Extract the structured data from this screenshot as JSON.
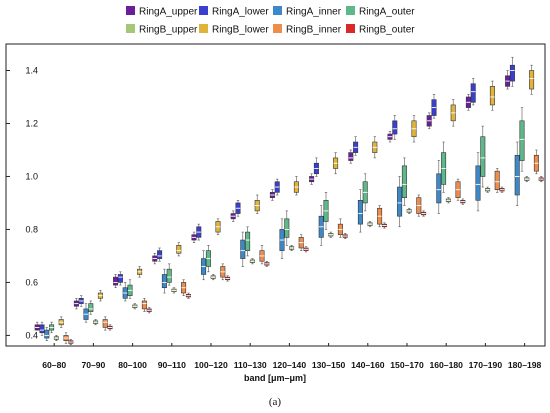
{
  "caption": "(a)",
  "chart_data": {
    "type": "box",
    "xlabel": "band [μm–μm]",
    "ylabel": "",
    "ylim": [
      0.36,
      1.5
    ],
    "yticks": [
      0.4,
      0.6,
      0.8,
      1.0,
      1.2,
      1.4
    ],
    "ytick_labels": [
      "0.4",
      "0.6",
      "0.8",
      "1.0",
      "1.2",
      "1.4"
    ],
    "grid": false,
    "legend_position": "top",
    "categories": [
      "60–80",
      "70–90",
      "80–100",
      "90–110",
      "100–120",
      "110–130",
      "120–140",
      "130–150",
      "140–160",
      "150–170",
      "160–180",
      "170–190",
      "180–198"
    ],
    "series": [
      {
        "name": "RingA_upper",
        "color": "#6a1f9a",
        "median": [
          0.43,
          0.52,
          0.6,
          0.69,
          0.77,
          0.85,
          0.93,
          0.99,
          1.07,
          1.15,
          1.21,
          1.28,
          1.36
        ],
        "q1": [
          0.42,
          0.51,
          0.59,
          0.68,
          0.76,
          0.84,
          0.92,
          0.98,
          1.06,
          1.14,
          1.19,
          1.26,
          1.34
        ],
        "q3": [
          0.44,
          0.53,
          0.62,
          0.7,
          0.78,
          0.86,
          0.94,
          1.0,
          1.09,
          1.16,
          1.23,
          1.3,
          1.38
        ],
        "whisker_low": [
          0.42,
          0.5,
          0.58,
          0.67,
          0.75,
          0.83,
          0.91,
          0.97,
          1.05,
          1.13,
          1.18,
          1.25,
          1.33
        ],
        "whisker_high": [
          0.45,
          0.54,
          0.63,
          0.71,
          0.79,
          0.87,
          0.95,
          1.01,
          1.1,
          1.17,
          1.24,
          1.31,
          1.4
        ]
      },
      {
        "name": "RingA_lower",
        "color": "#3a3fcf",
        "median": [
          0.42,
          0.53,
          0.62,
          0.7,
          0.79,
          0.88,
          0.96,
          1.03,
          1.11,
          1.18,
          1.26,
          1.32,
          1.4
        ],
        "q1": [
          0.41,
          0.52,
          0.6,
          0.69,
          0.77,
          0.86,
          0.94,
          1.01,
          1.09,
          1.16,
          1.23,
          1.28,
          1.36
        ],
        "q3": [
          0.44,
          0.54,
          0.63,
          0.72,
          0.81,
          0.9,
          0.98,
          1.05,
          1.13,
          1.21,
          1.29,
          1.35,
          1.42
        ],
        "whisker_low": [
          0.4,
          0.51,
          0.59,
          0.68,
          0.76,
          0.85,
          0.93,
          1.0,
          1.08,
          1.14,
          1.22,
          1.27,
          1.34
        ],
        "whisker_high": [
          0.45,
          0.55,
          0.64,
          0.73,
          0.82,
          0.91,
          0.99,
          1.07,
          1.15,
          1.23,
          1.31,
          1.37,
          1.45
        ]
      },
      {
        "name": "RingA_inner",
        "color": "#3d88c9",
        "median": [
          0.4,
          0.48,
          0.56,
          0.6,
          0.66,
          0.72,
          0.76,
          0.81,
          0.86,
          0.9,
          0.95,
          0.97,
          1.0
        ],
        "q1": [
          0.39,
          0.46,
          0.54,
          0.58,
          0.63,
          0.69,
          0.72,
          0.77,
          0.82,
          0.85,
          0.9,
          0.91,
          0.93
        ],
        "q3": [
          0.42,
          0.5,
          0.58,
          0.63,
          0.69,
          0.76,
          0.8,
          0.85,
          0.91,
          0.96,
          1.01,
          1.04,
          1.08
        ],
        "whisker_low": [
          0.38,
          0.45,
          0.53,
          0.56,
          0.61,
          0.66,
          0.69,
          0.74,
          0.79,
          0.81,
          0.86,
          0.87,
          0.89
        ],
        "whisker_high": [
          0.43,
          0.52,
          0.6,
          0.65,
          0.72,
          0.79,
          0.84,
          0.89,
          0.95,
          1.0,
          1.06,
          1.09,
          1.13
        ]
      },
      {
        "name": "RingA_outer",
        "color": "#5fb889",
        "median": [
          0.43,
          0.5,
          0.57,
          0.62,
          0.69,
          0.76,
          0.8,
          0.87,
          0.94,
          0.97,
          1.03,
          1.07,
          1.14
        ],
        "q1": [
          0.42,
          0.49,
          0.55,
          0.6,
          0.66,
          0.72,
          0.77,
          0.83,
          0.9,
          0.92,
          0.97,
          1.0,
          1.06
        ],
        "q3": [
          0.44,
          0.52,
          0.59,
          0.65,
          0.72,
          0.79,
          0.84,
          0.91,
          0.98,
          1.04,
          1.09,
          1.15,
          1.21
        ],
        "whisker_low": [
          0.41,
          0.48,
          0.54,
          0.59,
          0.64,
          0.7,
          0.74,
          0.8,
          0.87,
          0.89,
          0.94,
          0.96,
          1.02
        ],
        "whisker_high": [
          0.45,
          0.53,
          0.61,
          0.67,
          0.74,
          0.81,
          0.87,
          0.94,
          1.01,
          1.07,
          1.13,
          1.19,
          1.26
        ]
      },
      {
        "name": "RingB_upper",
        "color": "#a3c87a",
        "median": [
          0.39,
          0.45,
          0.51,
          0.57,
          0.62,
          0.68,
          0.73,
          0.78,
          0.82,
          0.87,
          0.91,
          0.95,
          0.99
        ],
        "q1": [
          0.385,
          0.445,
          0.505,
          0.565,
          0.615,
          0.675,
          0.725,
          0.775,
          0.815,
          0.865,
          0.905,
          0.945,
          0.985
        ],
        "q3": [
          0.395,
          0.455,
          0.515,
          0.575,
          0.625,
          0.685,
          0.735,
          0.785,
          0.825,
          0.875,
          0.915,
          0.955,
          0.995
        ],
        "whisker_low": [
          0.38,
          0.44,
          0.5,
          0.56,
          0.61,
          0.67,
          0.72,
          0.77,
          0.81,
          0.86,
          0.9,
          0.94,
          0.98
        ],
        "whisker_high": [
          0.4,
          0.46,
          0.52,
          0.58,
          0.63,
          0.69,
          0.74,
          0.79,
          0.83,
          0.88,
          0.92,
          0.96,
          1.0
        ]
      },
      {
        "name": "RingB_lower",
        "color": "#e0b43a",
        "median": [
          0.45,
          0.55,
          0.64,
          0.72,
          0.81,
          0.89,
          0.96,
          1.05,
          1.11,
          1.18,
          1.24,
          1.3,
          1.37
        ],
        "q1": [
          0.44,
          0.54,
          0.63,
          0.71,
          0.79,
          0.87,
          0.94,
          1.03,
          1.09,
          1.15,
          1.21,
          1.27,
          1.33
        ],
        "q3": [
          0.46,
          0.56,
          0.65,
          0.74,
          0.83,
          0.91,
          0.98,
          1.07,
          1.13,
          1.21,
          1.27,
          1.34,
          1.4
        ],
        "whisker_low": [
          0.43,
          0.53,
          0.62,
          0.7,
          0.78,
          0.86,
          0.93,
          1.01,
          1.07,
          1.13,
          1.19,
          1.25,
          1.31
        ],
        "whisker_high": [
          0.47,
          0.57,
          0.66,
          0.75,
          0.84,
          0.93,
          1.0,
          1.09,
          1.15,
          1.23,
          1.29,
          1.36,
          1.42
        ]
      },
      {
        "name": "RingB_inner",
        "color": "#ee8c4a",
        "median": [
          0.39,
          0.45,
          0.52,
          0.58,
          0.64,
          0.7,
          0.75,
          0.8,
          0.85,
          0.89,
          0.95,
          0.98,
          1.05
        ],
        "q1": [
          0.38,
          0.43,
          0.5,
          0.56,
          0.62,
          0.68,
          0.73,
          0.78,
          0.82,
          0.86,
          0.92,
          0.95,
          1.02
        ],
        "q3": [
          0.4,
          0.46,
          0.53,
          0.6,
          0.66,
          0.72,
          0.77,
          0.82,
          0.88,
          0.92,
          0.98,
          1.02,
          1.08
        ],
        "whisker_low": [
          0.37,
          0.42,
          0.49,
          0.55,
          0.61,
          0.67,
          0.72,
          0.77,
          0.81,
          0.85,
          0.91,
          0.94,
          1.01
        ],
        "whisker_high": [
          0.41,
          0.47,
          0.54,
          0.61,
          0.67,
          0.74,
          0.78,
          0.84,
          0.89,
          0.93,
          0.99,
          1.03,
          1.1
        ]
      },
      {
        "name": "RingB_outer",
        "color": "#d92a2a",
        "median": [
          0.375,
          0.43,
          0.495,
          0.55,
          0.615,
          0.67,
          0.725,
          0.775,
          0.815,
          0.86,
          0.905,
          0.95,
          0.99
        ],
        "q1": [
          0.37,
          0.425,
          0.49,
          0.545,
          0.61,
          0.665,
          0.72,
          0.77,
          0.81,
          0.855,
          0.9,
          0.945,
          0.985
        ],
        "q3": [
          0.38,
          0.435,
          0.5,
          0.555,
          0.62,
          0.675,
          0.73,
          0.78,
          0.82,
          0.865,
          0.91,
          0.955,
          0.995
        ],
        "whisker_low": [
          0.365,
          0.42,
          0.485,
          0.54,
          0.605,
          0.66,
          0.715,
          0.765,
          0.805,
          0.85,
          0.895,
          0.94,
          0.98
        ],
        "whisker_high": [
          0.385,
          0.44,
          0.505,
          0.56,
          0.625,
          0.68,
          0.735,
          0.785,
          0.825,
          0.87,
          0.915,
          0.96,
          1.0
        ]
      }
    ]
  }
}
